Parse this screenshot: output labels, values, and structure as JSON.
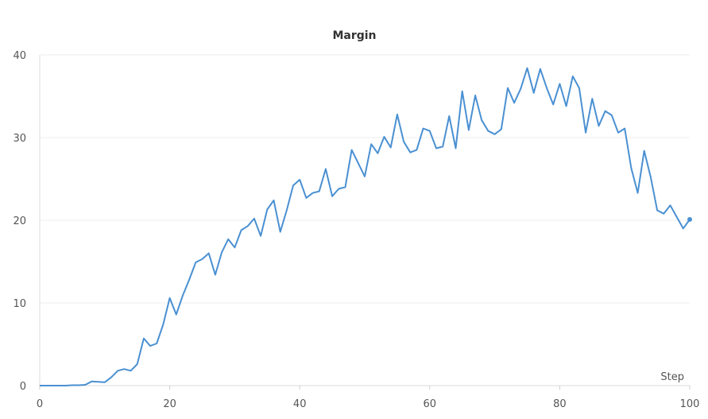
{
  "chart_data": {
    "type": "line",
    "title": "Margin",
    "xlabel": "Step",
    "ylabel": "",
    "xlim": [
      0,
      100
    ],
    "ylim": [
      0,
      40
    ],
    "x_ticks": [
      "0",
      "20",
      "40",
      "60",
      "80",
      "100"
    ],
    "y_ticks": [
      "0",
      "10",
      "20",
      "30",
      "40"
    ],
    "grid": true,
    "line_color": "#4a90d2",
    "series": [
      {
        "x": [
          0,
          1,
          2,
          3,
          4,
          5,
          6,
          7,
          8,
          9,
          10,
          11,
          12,
          13,
          14,
          15,
          16,
          17,
          18,
          19,
          20,
          21,
          22,
          23,
          24,
          25,
          26,
          27,
          28,
          29,
          30,
          31,
          32,
          33,
          34,
          35,
          36,
          37,
          38,
          39,
          40,
          41,
          42,
          43,
          44,
          45,
          46,
          47,
          48,
          49,
          50,
          51,
          52,
          53,
          54,
          55,
          56,
          57,
          58,
          59,
          60,
          61,
          62,
          63,
          64,
          65,
          66,
          67,
          68,
          69,
          70,
          71,
          72,
          73,
          74,
          75,
          76,
          77,
          78,
          79,
          80,
          81,
          82,
          83,
          84,
          85,
          86,
          87,
          88,
          89,
          90,
          91,
          92,
          93,
          94,
          95,
          96,
          97,
          98,
          99,
          100
        ],
        "values": [
          0,
          0,
          0,
          0,
          0,
          0.05,
          0.05,
          0.1,
          0.5,
          0.45,
          0.4,
          1.0,
          1.8,
          2.0,
          1.8,
          2.6,
          5.7,
          4.8,
          5.1,
          7.4,
          10.6,
          8.6,
          10.9,
          12.8,
          14.9,
          15.3,
          16.0,
          13.4,
          16.1,
          17.7,
          16.7,
          18.8,
          19.3,
          20.2,
          18.1,
          21.3,
          22.4,
          18.6,
          21.2,
          24.2,
          24.9,
          22.7,
          23.3,
          23.5,
          26.2,
          22.9,
          23.8,
          24.0,
          28.5,
          26.9,
          25.3,
          29.2,
          28.1,
          30.1,
          28.8,
          32.8,
          29.5,
          28.2,
          28.5,
          31.1,
          30.8,
          28.7,
          28.9,
          32.6,
          28.7,
          35.6,
          30.9,
          35.1,
          32.1,
          30.8,
          30.4,
          31.0,
          36.0,
          34.2,
          35.9,
          38.4,
          35.4,
          38.3,
          36.0,
          34.0,
          36.5,
          33.8,
          37.4,
          36.0,
          30.6,
          34.7,
          31.4,
          33.2,
          32.7,
          30.6,
          31.1,
          26.3,
          23.3,
          28.4,
          25.2,
          21.2,
          20.8,
          21.8,
          20.4,
          19.0,
          20.1
        ]
      }
    ]
  }
}
